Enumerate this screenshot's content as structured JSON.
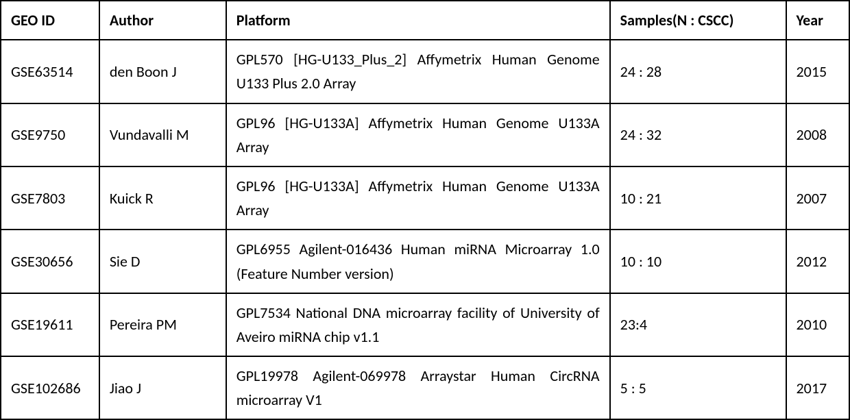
{
  "table": {
    "columns": [
      {
        "key": "geo_id",
        "header": "GEO ID",
        "class": "col-geo"
      },
      {
        "key": "author",
        "header": "Author",
        "class": "col-author"
      },
      {
        "key": "platform",
        "header": "Platform",
        "class": "col-platform"
      },
      {
        "key": "samples",
        "header": "Samples(N : CSCC)",
        "class": "col-samples"
      },
      {
        "key": "year",
        "header": "Year",
        "class": "col-year"
      }
    ],
    "rows": [
      {
        "geo_id": "GSE63514",
        "author": "den Boon J",
        "platform": "GPL570 [HG-U133_Plus_2] Affymetrix Human Genome U133 Plus 2.0 Array",
        "samples": "24 : 28",
        "year": "2015"
      },
      {
        "geo_id": "GSE9750",
        "author": "Vundavalli M",
        "platform": "GPL96 [HG-U133A] Affymetrix Human Genome U133A Array",
        "samples": "24 : 32",
        "year": "2008"
      },
      {
        "geo_id": "GSE7803",
        "author": "Kuick R",
        "platform": "GPL96 [HG-U133A] Affymetrix Human Genome U133A Array",
        "samples": "10 : 21",
        "year": "2007"
      },
      {
        "geo_id": "GSE30656",
        "author": "Sie D",
        "platform": "GPL6955 Agilent-016436 Human miRNA Microarray 1.0 (Feature Number version)",
        "samples": "10 : 10",
        "year": "2012"
      },
      {
        "geo_id": "GSE19611",
        "author": "Pereira PM",
        "platform": "GPL7534 National DNA microarray facility of University of Aveiro miRNA chip v1.1",
        "samples": "23:4",
        "year": "2010"
      },
      {
        "geo_id": "GSE102686",
        "author": "Jiao J",
        "platform": "GPL19978 Agilent-069978 Arraystar Human CircRNA microarray V1",
        "samples": "5 : 5",
        "year": "2017"
      }
    ],
    "styles": {
      "border_color": "#000000",
      "border_width": 2,
      "background_color": "#ffffff",
      "text_color": "#000000",
      "header_font_weight": "bold",
      "cell_font_size": 22,
      "font_family": "Calibri",
      "platform_text_align": "justify"
    }
  }
}
